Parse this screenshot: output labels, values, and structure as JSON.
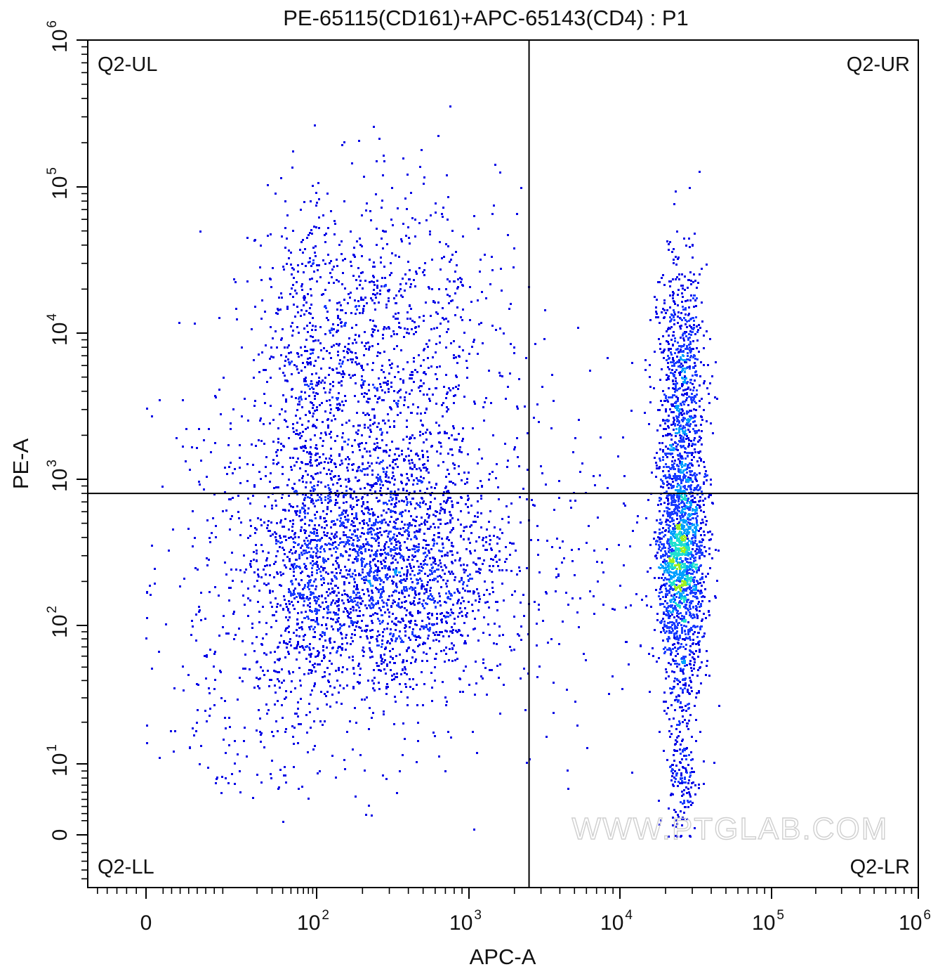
{
  "chart_data": {
    "type": "scatter",
    "title": "PE-65115(CD161)+APC-65143(CD4) : P1",
    "xlabel": "APC-A",
    "ylabel": "PE-A",
    "x_scale": "biexponential",
    "y_scale": "biexponential",
    "xlim": [
      -300,
      1000000
    ],
    "ylim": [
      -300,
      1000000
    ],
    "x_ticks": [
      {
        "value": 0,
        "base": "0",
        "exp": ""
      },
      {
        "value": 100,
        "base": "10",
        "exp": "2"
      },
      {
        "value": 1000,
        "base": "10",
        "exp": "3"
      },
      {
        "value": 10000,
        "base": "10",
        "exp": "4"
      },
      {
        "value": 100000,
        "base": "10",
        "exp": "5"
      },
      {
        "value": 1000000,
        "base": "10",
        "exp": "6"
      }
    ],
    "y_ticks": [
      {
        "value": 0,
        "base": "0",
        "exp": ""
      },
      {
        "value": 10,
        "base": "10",
        "exp": "1"
      },
      {
        "value": 100,
        "base": "10",
        "exp": "2"
      },
      {
        "value": 1000,
        "base": "10",
        "exp": "3"
      },
      {
        "value": 10000,
        "base": "10",
        "exp": "4"
      },
      {
        "value": 100000,
        "base": "10",
        "exp": "5"
      },
      {
        "value": 1000000,
        "base": "10",
        "exp": "6"
      }
    ],
    "quadrant_gate": {
      "x": 2500,
      "y": 800
    },
    "quadrants": [
      {
        "id": "UL",
        "label": "Q2-UL",
        "position": "top-left"
      },
      {
        "id": "UR",
        "label": "Q2-UR",
        "position": "top-right"
      },
      {
        "id": "LL",
        "label": "Q2-LL",
        "position": "bottom-left"
      },
      {
        "id": "LR",
        "label": "Q2-LR",
        "position": "bottom-right"
      }
    ],
    "populations": [
      {
        "name": "",
        "x_center": 250,
        "y_center": 250,
        "x_spread_decades": 0.45,
        "y_spread_decades": 0.45,
        "events": 2600
      },
      {
        "name": "",
        "x_center": 200,
        "y_center": 8000,
        "x_spread_decades": 0.45,
        "y_spread_decades": 0.55,
        "events": 1300
      },
      {
        "name": "",
        "x_center": 25000,
        "y_center": 300,
        "x_spread_decades": 0.08,
        "y_spread_decades": 0.4,
        "events": 1700
      },
      {
        "name": "",
        "x_center": 25000,
        "y_center": 5000,
        "x_spread_decades": 0.08,
        "y_spread_decades": 0.4,
        "events": 700
      },
      {
        "name": "",
        "x_center": 25000,
        "y_center": 10,
        "x_spread_decades": 0.06,
        "y_spread_decades": 0.5,
        "events": 250
      },
      {
        "name": "",
        "x_center": 30,
        "y_center": 200,
        "x_spread_decades": 0.7,
        "y_spread_decades": 0.8,
        "events": 600
      },
      {
        "name": "",
        "x_center": 6000,
        "y_center": 300,
        "x_spread_decades": 0.3,
        "y_spread_decades": 0.7,
        "events": 120
      }
    ],
    "density_colors": [
      "#0000e6",
      "#1a3cff",
      "#00a0ff",
      "#20e0d0",
      "#a0f020"
    ],
    "watermark": "WWW.PTGLAB.COM",
    "grid": false,
    "legend": "none"
  }
}
